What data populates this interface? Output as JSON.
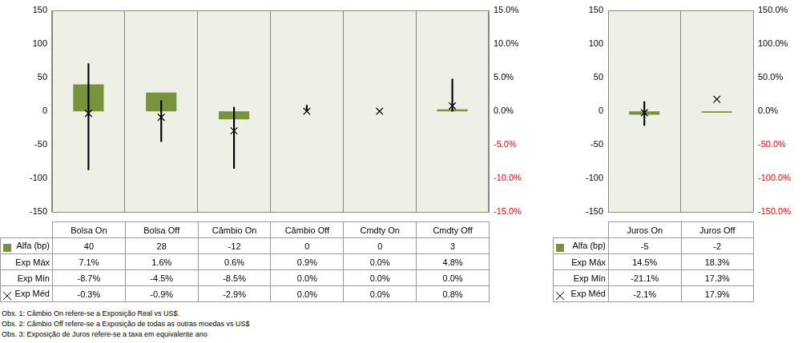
{
  "chart_data": [
    {
      "type": "bar",
      "categories": [
        "Bolsa On",
        "Bolsa Off",
        "Câmbio On",
        "Câmbio Off",
        "Cmdty On",
        "Cmdty Off"
      ],
      "series": [
        {
          "name": "Alfa (bp)",
          "type": "bar",
          "color": "#77933c",
          "values": [
            40,
            28,
            -12,
            0,
            0,
            3
          ]
        },
        {
          "name": "Exp Máx",
          "type": "range",
          "color": "#000000",
          "axis": "y2",
          "values": [
            7.1,
            1.6,
            0.6,
            0.9,
            0,
            4.8
          ],
          "value_labels": [
            "7.1%",
            "1.6%",
            "0.6%",
            "0.9%",
            "0.0%",
            "4.8%"
          ]
        },
        {
          "name": "Exp Mín",
          "type": "range",
          "color": "#000000",
          "axis": "y2",
          "values": [
            -8.7,
            -4.5,
            -8.5,
            0,
            0,
            0
          ],
          "value_labels": [
            "-8.7%",
            "-4.5%",
            "-8.5%",
            "0.0%",
            "0.0%",
            "0.0%"
          ]
        },
        {
          "name": "Exp Méd",
          "type": "scatter",
          "marker": "x",
          "color": "#000000",
          "axis": "y2",
          "values": [
            -0.3,
            -0.9,
            -2.9,
            0,
            0,
            0.8
          ],
          "value_labels": [
            "-0.3%",
            "-0.9%",
            "-2.9%",
            "0.0%",
            "0.0%",
            "0.8%"
          ]
        }
      ],
      "ylim": [
        -150,
        150
      ],
      "yticks": [
        -150,
        -100,
        -50,
        0,
        50,
        100,
        150
      ],
      "y2lim": [
        -15,
        15
      ],
      "y2ticks": [
        {
          "value": -15,
          "label": "-15.0%"
        },
        {
          "value": -10,
          "label": "-10.0%"
        },
        {
          "value": -5,
          "label": "-5.0%"
        },
        {
          "value": 0,
          "label": "0.0%"
        },
        {
          "value": 5,
          "label": "5.0%"
        },
        {
          "value": 10,
          "label": "10.0%"
        },
        {
          "value": 15,
          "label": "15.0%"
        }
      ],
      "grid": "x"
    },
    {
      "type": "bar",
      "categories": [
        "Juros On",
        "Juros Off"
      ],
      "series": [
        {
          "name": "Alfa (bp)",
          "type": "bar",
          "color": "#77933c",
          "values": [
            -5,
            -2
          ]
        },
        {
          "name": "Exp Máx",
          "type": "range",
          "color": "#000000",
          "axis": "y2",
          "values": [
            14.5,
            18.3
          ],
          "value_labels": [
            "14.5%",
            "18.3%"
          ]
        },
        {
          "name": "Exp Mín",
          "type": "range",
          "color": "#000000",
          "axis": "y2",
          "values": [
            -21.1,
            17.3
          ],
          "value_labels": [
            "-21.1%",
            "17.3%"
          ]
        },
        {
          "name": "Exp Méd",
          "type": "scatter",
          "marker": "x",
          "color": "#000000",
          "axis": "y2",
          "values": [
            -2.1,
            17.9
          ],
          "value_labels": [
            "-2.1%",
            "17.9%"
          ]
        }
      ],
      "ylim": [
        -150,
        150
      ],
      "yticks": [
        -150,
        -100,
        -50,
        0,
        50,
        100,
        150
      ],
      "y2lim": [
        -150,
        150
      ],
      "y2ticks": [
        {
          "value": -150,
          "label": "-150.0%"
        },
        {
          "value": -100,
          "label": "-100.0%"
        },
        {
          "value": -50,
          "label": "-50.0%"
        },
        {
          "value": 0,
          "label": "0.0%"
        },
        {
          "value": 50,
          "label": "50.0%"
        },
        {
          "value": 100,
          "label": "100.0%"
        },
        {
          "value": 150,
          "label": "150.0%"
        }
      ],
      "grid": "x"
    }
  ],
  "notes": [
    "Obs. 1: Câmbio On refere-se a Exposição Real vs US$.",
    "Obs. 2: Câmbio Off refere-se a Exposição de todas as outras moedas vs US$",
    "Obs. 3: Exposição de Juros refere-se a taxa em equivalente ano"
  ]
}
